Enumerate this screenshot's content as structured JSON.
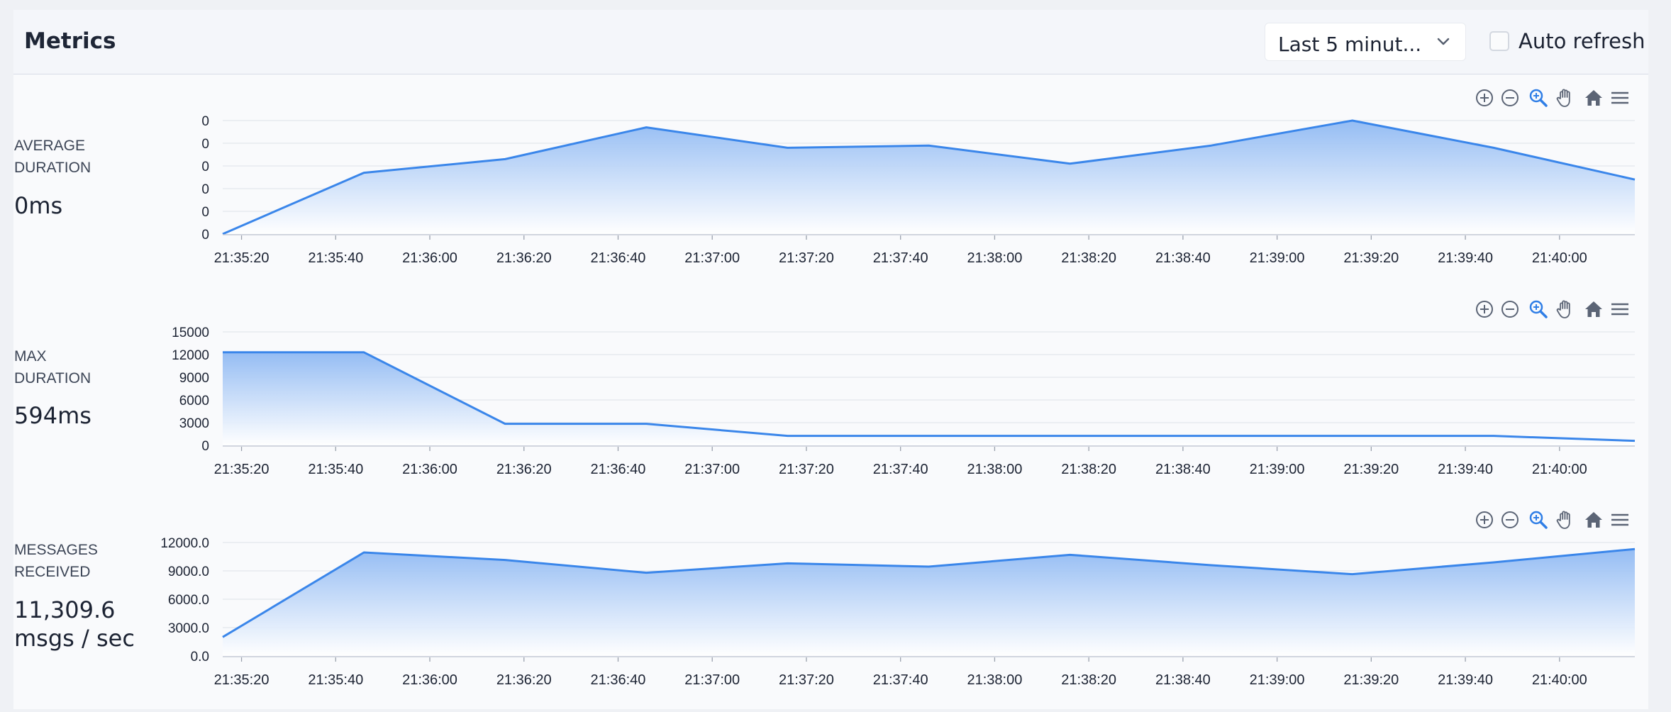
{
  "header": {
    "title": "Metrics",
    "time_range": "Last 5 minut...",
    "auto_refresh_label": "Auto refresh",
    "auto_refresh_checked": false
  },
  "toolbar_icons": [
    "zoom-in-icon",
    "zoom-out-icon",
    "zoom-selection-icon",
    "pan-hand-icon",
    "home-reset-icon",
    "menu-icon"
  ],
  "colors": {
    "accent": "#3a86ea",
    "area_top": "#8fb9f3",
    "area_bottom": "#ffffff",
    "grid": "#dde1e8"
  },
  "metrics": [
    {
      "label_line1": "AVERAGE",
      "label_line2": "DURATION",
      "value": "0ms"
    },
    {
      "label_line1": "MAX",
      "label_line2": "DURATION",
      "value": "594ms"
    },
    {
      "label_line1": "MESSAGES",
      "label_line2": "RECEIVED",
      "value_line1": "11,309.6",
      "value_line2": "msgs / sec"
    }
  ],
  "chart_data": [
    {
      "type": "area",
      "title": "",
      "x_tick_labels": [
        "21:35:20",
        "21:35:40",
        "21:36:00",
        "21:36:20",
        "21:36:40",
        "21:37:00",
        "21:37:20",
        "21:37:40",
        "21:38:00",
        "21:38:20",
        "21:38:40",
        "21:39:00",
        "21:39:20",
        "21:39:40",
        "21:40:00"
      ],
      "y_tick_labels": [
        "0",
        "0",
        "0",
        "0",
        "0",
        "0"
      ],
      "x_range": [
        "21:35:16",
        "21:40:16"
      ],
      "x": [
        "21:35:16",
        "21:35:46",
        "21:36:16",
        "21:36:46",
        "21:37:16",
        "21:37:46",
        "21:38:16",
        "21:38:46",
        "21:39:16",
        "21:39:46",
        "21:40:16"
      ],
      "y": [
        0,
        0.27,
        0.33,
        0.47,
        0.38,
        0.39,
        0.31,
        0.39,
        0.5,
        0.38,
        0.24
      ],
      "ylim": [
        0,
        0.5
      ],
      "grid": true
    },
    {
      "type": "area",
      "title": "",
      "x_tick_labels": [
        "21:35:20",
        "21:35:40",
        "21:36:00",
        "21:36:20",
        "21:36:40",
        "21:37:00",
        "21:37:20",
        "21:37:40",
        "21:38:00",
        "21:38:20",
        "21:38:40",
        "21:39:00",
        "21:39:20",
        "21:39:40",
        "21:40:00"
      ],
      "y_tick_labels": [
        "0",
        "3000",
        "6000",
        "9000",
        "12000",
        "15000"
      ],
      "x_range": [
        "21:35:16",
        "21:40:16"
      ],
      "x": [
        "21:35:16",
        "21:35:46",
        "21:36:16",
        "21:36:46",
        "21:37:16",
        "21:37:46",
        "21:38:16",
        "21:38:46",
        "21:39:16",
        "21:39:46",
        "21:40:16"
      ],
      "y": [
        12300,
        12300,
        2850,
        2850,
        1250,
        1250,
        1250,
        1250,
        1250,
        1250,
        594
      ],
      "ylim": [
        0,
        15000
      ],
      "grid": true
    },
    {
      "type": "area",
      "title": "",
      "x_tick_labels": [
        "21:35:20",
        "21:35:40",
        "21:36:00",
        "21:36:20",
        "21:36:40",
        "21:37:00",
        "21:37:20",
        "21:37:40",
        "21:38:00",
        "21:38:20",
        "21:38:40",
        "21:39:00",
        "21:39:20",
        "21:39:40",
        "21:40:00"
      ],
      "y_tick_labels": [
        "0.0",
        "3000.0",
        "6000.0",
        "9000.0",
        "12000.0"
      ],
      "x_range": [
        "21:35:16",
        "21:40:16"
      ],
      "x": [
        "21:35:16",
        "21:35:46",
        "21:36:16",
        "21:36:46",
        "21:37:16",
        "21:37:46",
        "21:38:16",
        "21:38:46",
        "21:39:16",
        "21:39:46",
        "21:40:16"
      ],
      "y": [
        2000,
        10950,
        10150,
        8800,
        9800,
        9450,
        10700,
        9600,
        8650,
        9900,
        11309.6
      ],
      "ylim": [
        0,
        12000
      ],
      "grid": true
    }
  ]
}
